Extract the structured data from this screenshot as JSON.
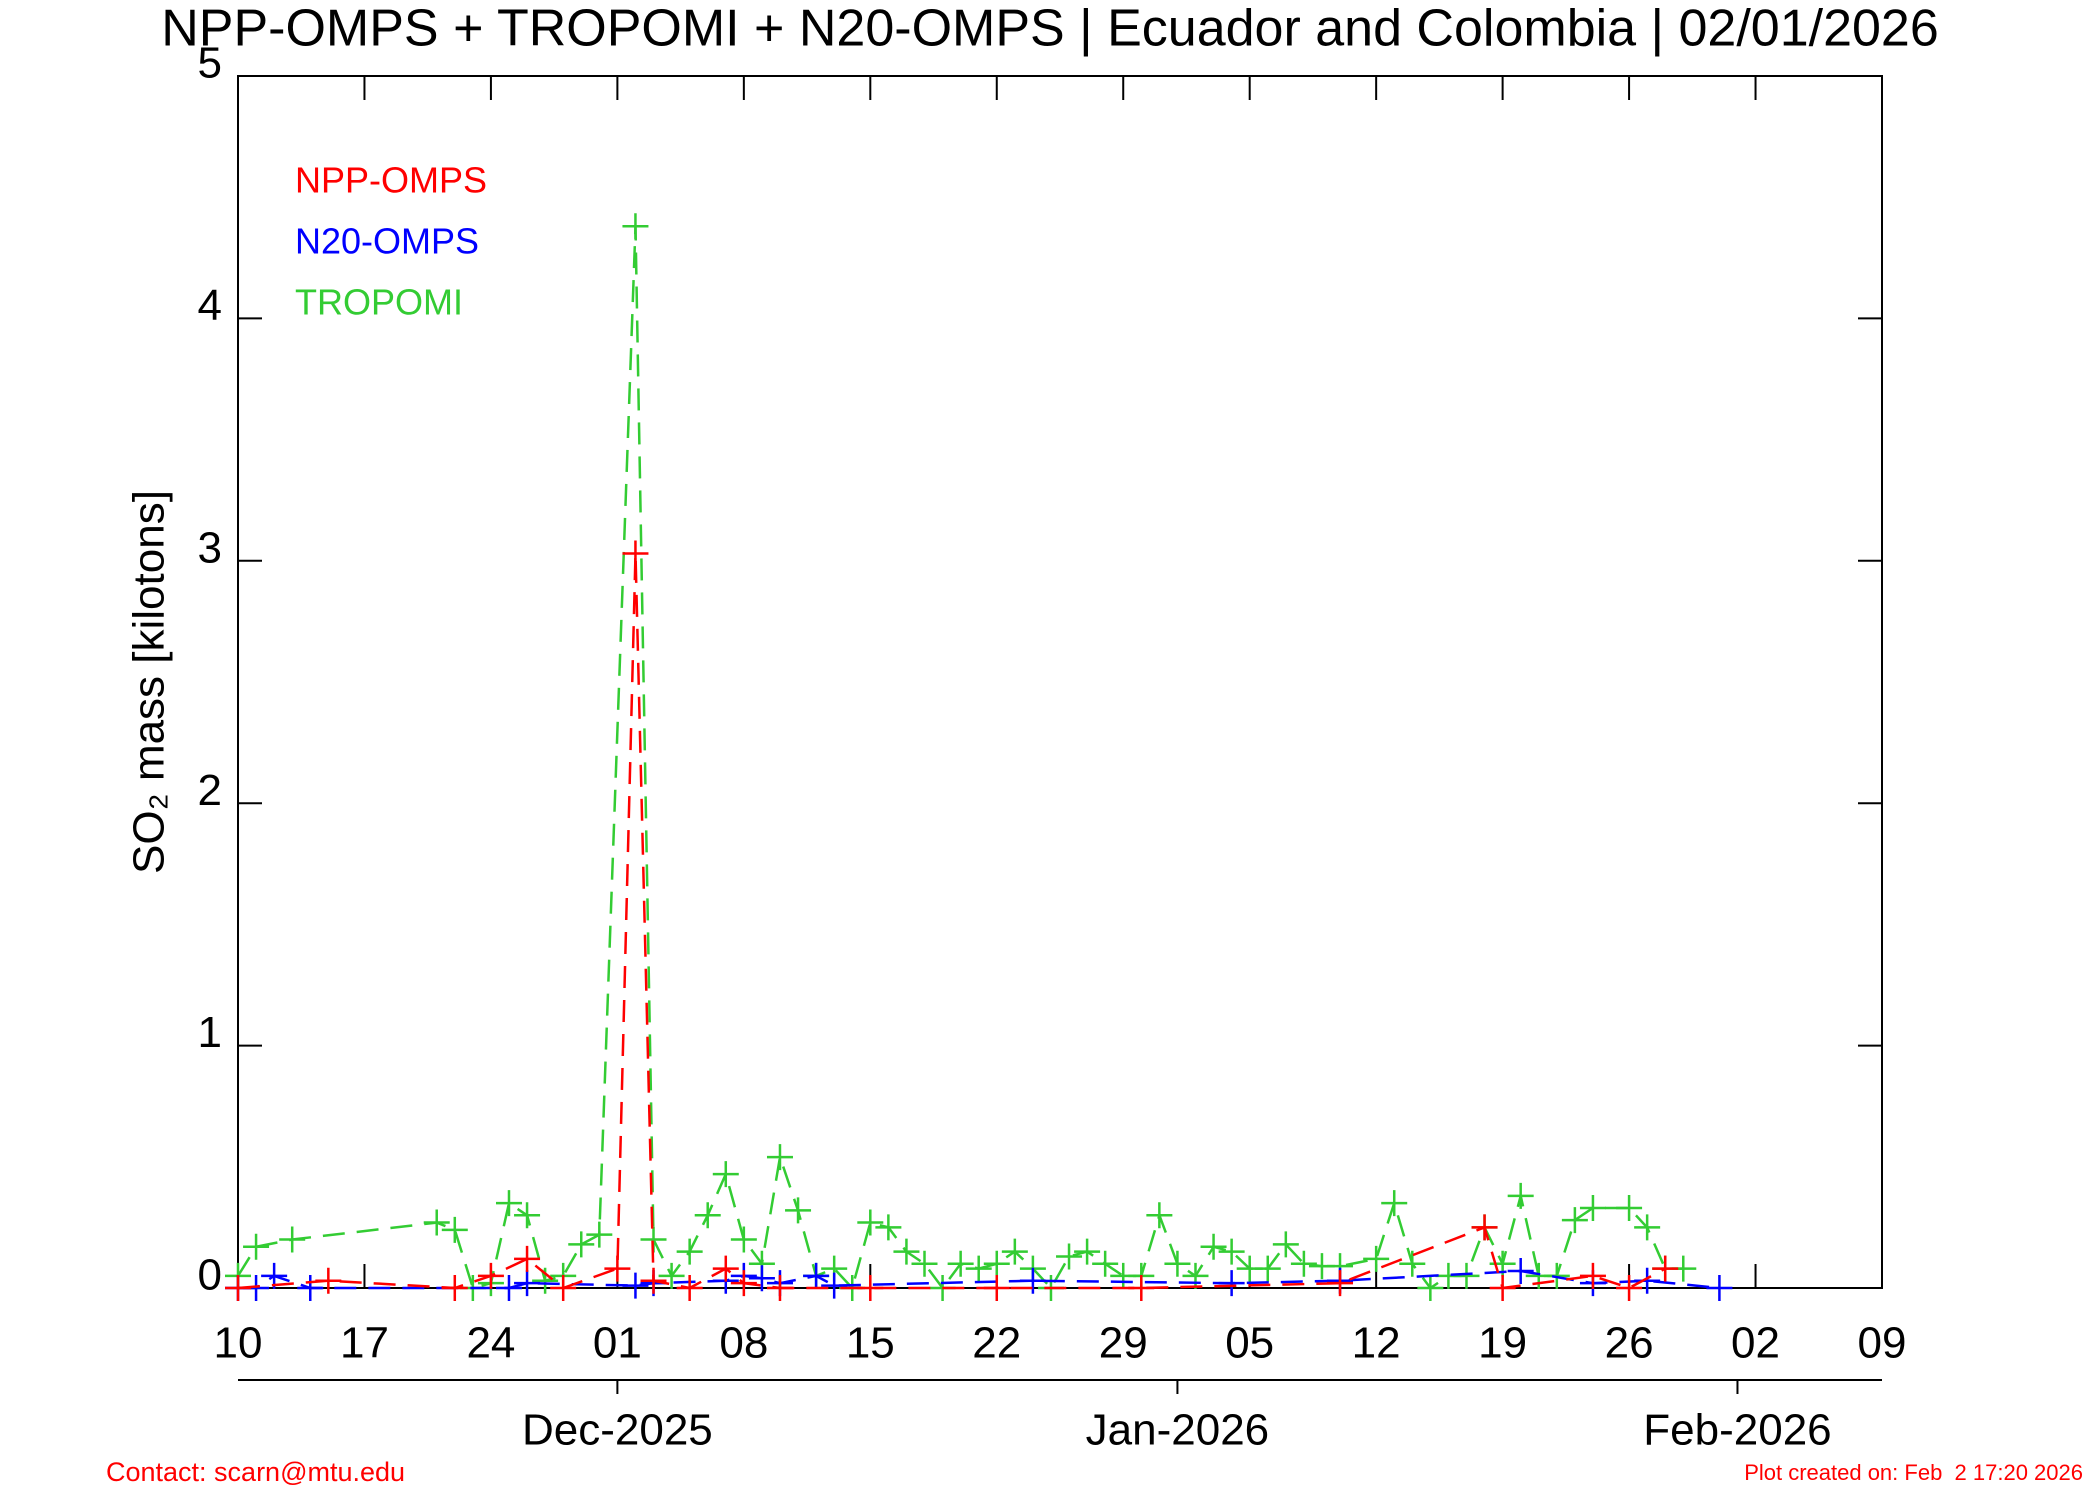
{
  "chart_data": {
    "type": "line",
    "title": "NPP-OMPS + TROPOMI + N20-OMPS | Ecuador and Colombia | 02/01/2026",
    "y_label": "SO₂ mass [kilotons]",
    "footer_left": "Contact: scarn@mtu.edu",
    "footer_right": "Plot created on: Feb  2 17:20 2026",
    "xlim": [
      "2025-11-10",
      "2026-02-09"
    ],
    "xticks": [
      {
        "value": "2025-11-10",
        "label": "10"
      },
      {
        "value": "2025-11-17",
        "label": "17"
      },
      {
        "value": "2025-11-24",
        "label": "24"
      },
      {
        "value": "2025-12-01",
        "label": "01"
      },
      {
        "value": "2025-12-08",
        "label": "08"
      },
      {
        "value": "2025-12-15",
        "label": "15"
      },
      {
        "value": "2025-12-22",
        "label": "22"
      },
      {
        "value": "2025-12-29",
        "label": "29"
      },
      {
        "value": "2026-01-05",
        "label": "05"
      },
      {
        "value": "2026-01-12",
        "label": "12"
      },
      {
        "value": "2026-01-19",
        "label": "19"
      },
      {
        "value": "2026-01-26",
        "label": "26"
      },
      {
        "value": "2026-02-02",
        "label": "02"
      },
      {
        "value": "2026-02-09",
        "label": "09"
      }
    ],
    "month_ticks": [
      {
        "value": "2025-12-01",
        "label": "Dec-2025"
      },
      {
        "value": "2026-01-01",
        "label": "Jan-2026"
      },
      {
        "value": "2026-02-01",
        "label": "Feb-2026"
      }
    ],
    "ylim": [
      0,
      5
    ],
    "yticks": [
      0,
      1,
      2,
      3,
      4,
      5
    ],
    "legend": "upper left",
    "series": [
      {
        "name": "NPP-OMPS",
        "color": "#ff0000",
        "x": [
          "2025-11-10",
          "2025-11-15",
          "2025-11-22",
          "2025-11-24",
          "2025-11-26",
          "2025-11-28",
          "2025-12-01",
          "2025-12-02",
          "2025-12-03",
          "2025-12-05",
          "2025-12-07",
          "2025-12-08",
          "2025-12-10",
          "2025-12-15",
          "2025-12-22",
          "2025-12-30",
          "2026-01-10",
          "2026-01-18",
          "2026-01-19",
          "2026-01-24",
          "2026-01-26",
          "2026-01-28"
        ],
        "values": [
          0.0,
          0.03,
          0.0,
          0.05,
          0.12,
          0.0,
          0.08,
          3.03,
          0.03,
          0.0,
          0.08,
          0.02,
          0.0,
          0.0,
          0.0,
          0.0,
          0.02,
          0.25,
          0.0,
          0.05,
          0.0,
          0.08
        ]
      },
      {
        "name": "N20-OMPS",
        "color": "#0000ff",
        "x": [
          "2025-11-10",
          "2025-11-11",
          "2025-11-12",
          "2025-11-14",
          "2025-11-25",
          "2025-11-26",
          "2025-12-02",
          "2025-12-03",
          "2025-12-07",
          "2025-12-08",
          "2025-12-09",
          "2025-12-10",
          "2025-12-12",
          "2025-12-13",
          "2025-12-24",
          "2026-01-04",
          "2026-01-10",
          "2026-01-20",
          "2026-01-24",
          "2026-01-27",
          "2026-01-31"
        ],
        "values": [
          0.0,
          0.0,
          0.05,
          0.0,
          0.0,
          0.02,
          0.01,
          0.02,
          0.03,
          0.05,
          0.04,
          0.02,
          0.05,
          0.01,
          0.03,
          0.02,
          0.03,
          0.07,
          0.02,
          0.03,
          0.0
        ]
      },
      {
        "name": "TROPOMI",
        "color": "#33cc33",
        "x": [
          "2025-11-10",
          "2025-11-11",
          "2025-11-13",
          "2025-11-21",
          "2025-11-22",
          "2025-11-23",
          "2025-11-24",
          "2025-11-25",
          "2025-11-26",
          "2025-11-27",
          "2025-11-28",
          "2025-11-29",
          "2025-11-30",
          "2025-12-02",
          "2025-12-03",
          "2025-12-04",
          "2025-12-05",
          "2025-12-06",
          "2025-12-07",
          "2025-12-08",
          "2025-12-09",
          "2025-12-10",
          "2025-12-11",
          "2025-12-12",
          "2025-12-13",
          "2025-12-14",
          "2025-12-15",
          "2025-12-16",
          "2025-12-17",
          "2025-12-18",
          "2025-12-19",
          "2025-12-20",
          "2025-12-21",
          "2025-12-22",
          "2025-12-23",
          "2025-12-24",
          "2025-12-25",
          "2025-12-26",
          "2025-12-27",
          "2025-12-28",
          "2025-12-29",
          "2025-12-30",
          "2025-12-31",
          "2026-01-01",
          "2026-01-02",
          "2026-01-03",
          "2026-01-04",
          "2026-01-05",
          "2026-01-06",
          "2026-01-07",
          "2026-01-08",
          "2026-01-09",
          "2026-01-10",
          "2026-01-12",
          "2026-01-13",
          "2026-01-14",
          "2026-01-15",
          "2026-01-16",
          "2026-01-17",
          "2026-01-18",
          "2026-01-19",
          "2026-01-20",
          "2026-01-21",
          "2026-01-22",
          "2026-01-23",
          "2026-01-24",
          "2026-01-26",
          "2026-01-27",
          "2026-01-28",
          "2026-01-29"
        ],
        "values": [
          0.05,
          0.17,
          0.2,
          0.27,
          0.24,
          0.0,
          0.02,
          0.35,
          0.3,
          0.03,
          0.05,
          0.18,
          0.22,
          4.38,
          0.2,
          0.05,
          0.15,
          0.3,
          0.47,
          0.2,
          0.1,
          0.54,
          0.32,
          0.05,
          0.08,
          0.0,
          0.27,
          0.25,
          0.15,
          0.1,
          0.0,
          0.1,
          0.08,
          0.1,
          0.15,
          0.08,
          0.0,
          0.13,
          0.15,
          0.1,
          0.05,
          0.05,
          0.3,
          0.1,
          0.05,
          0.17,
          0.15,
          0.08,
          0.08,
          0.18,
          0.1,
          0.09,
          0.09,
          0.12,
          0.35,
          0.1,
          0.0,
          0.05,
          0.05,
          0.25,
          0.1,
          0.38,
          0.05,
          0.05,
          0.28,
          0.33,
          0.33,
          0.25,
          0.08,
          0.08
        ]
      }
    ]
  }
}
